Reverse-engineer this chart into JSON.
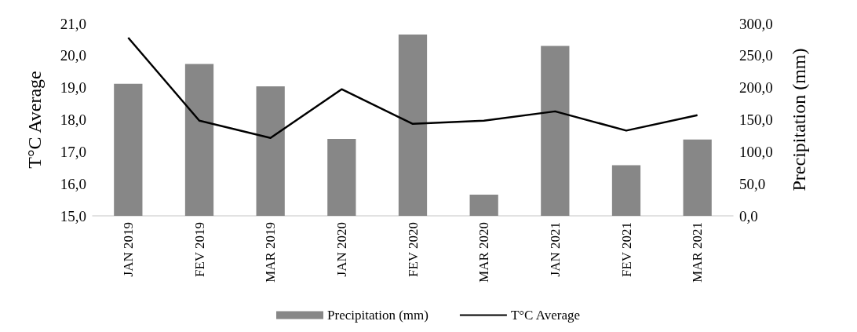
{
  "chart_data": {
    "type": "bar",
    "ylabel": "T°C Average",
    "y2label": "Precipitation (mm)",
    "categories": [
      "JAN 2019",
      "FEV 2019",
      "MAR 2019",
      "JAN 2020",
      "FEV 2020",
      "MAR 2020",
      "JAN 2021",
      "FEV 2021",
      "MAR 2021"
    ],
    "series": [
      {
        "name": "Precipitation (mm)",
        "axis": "y2",
        "color": "#878787",
        "values": [
          206,
          237,
          202,
          120,
          283,
          33,
          265,
          79,
          119
        ]
      },
      {
        "name": "T°C Average",
        "type": "line",
        "color": "#000000",
        "values": [
          20.56,
          17.97,
          17.43,
          18.95,
          17.87,
          17.97,
          18.26,
          17.66,
          18.14
        ]
      }
    ],
    "ylim": [
      15,
      21
    ],
    "yticks": [
      {
        "value": 15,
        "label": "15,0"
      },
      {
        "value": 16,
        "label": "16,0"
      },
      {
        "value": 17,
        "label": "17,0"
      },
      {
        "value": 18,
        "label": "18,0"
      },
      {
        "value": 19,
        "label": "19,0"
      },
      {
        "value": 20,
        "label": "20,0"
      },
      {
        "value": 21,
        "label": "21,0"
      }
    ],
    "y2lim": [
      0,
      300
    ],
    "y2ticks": [
      {
        "value": 0,
        "label": "0,0"
      },
      {
        "value": 50,
        "label": "50,0"
      },
      {
        "value": 100,
        "label": "100,0"
      },
      {
        "value": 150,
        "label": "150,0"
      },
      {
        "value": 200,
        "label": "200,0"
      },
      {
        "value": 250,
        "label": "250,0"
      },
      {
        "value": 300,
        "label": "300,0"
      }
    ],
    "legend": "bottom",
    "grid": false,
    "marker": "none"
  }
}
